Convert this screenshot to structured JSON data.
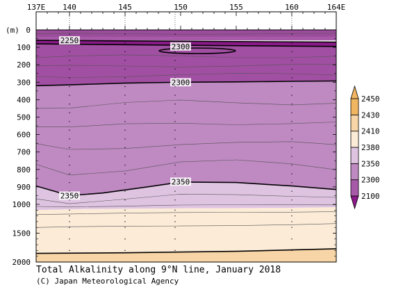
{
  "caption": {
    "title": "Total Alkalinity along 9°N line, January 2018",
    "credit": "(C) Japan Meteorological Agency"
  },
  "chart_data": {
    "type": "contour",
    "x_axis": {
      "unit_label": "",
      "ticks": [
        {
          "value": 137,
          "label": "137E"
        },
        {
          "value": 140,
          "label": "140"
        },
        {
          "value": 145,
          "label": "145"
        },
        {
          "value": 150,
          "label": "150"
        },
        {
          "value": 155,
          "label": "155"
        },
        {
          "value": 160,
          "label": "160"
        },
        {
          "value": 164,
          "label": "164E"
        }
      ],
      "range": [
        137,
        164
      ]
    },
    "y_axis": {
      "unit_label": "(m)",
      "ticks_upper": [
        0,
        100,
        200,
        300,
        400,
        500,
        600,
        700,
        800,
        900,
        1000
      ],
      "ticks_lower": [
        1500,
        2000
      ],
      "range": [
        0,
        2000
      ],
      "inverted": true
    },
    "stations_lon": [
      140,
      145,
      149.5,
      160
    ],
    "colorbar": {
      "levels": [
        "2100",
        "2300",
        "2350",
        "2380",
        "2410",
        "2430",
        "2450"
      ],
      "colors": [
        "#8b1a89",
        "#a65aa8",
        "#bf89c2",
        "#dfc4e2",
        "#fbebd7",
        "#f8d5a6",
        "#f1b662"
      ]
    },
    "contour_labels": [
      {
        "text": "2250",
        "lon": 140,
        "depth": 60
      },
      {
        "text": "2300",
        "lon": 150,
        "depth": 95
      },
      {
        "text": "2300",
        "lon": 150,
        "depth": 300
      },
      {
        "text": "2350",
        "lon": 150,
        "depth": 870
      },
      {
        "text": "2350",
        "lon": 140,
        "depth": 950
      }
    ],
    "bands": [
      {
        "value": 2300,
        "color": "#a65aa8",
        "upper": [
          [
            137,
            40
          ],
          [
            164,
            40
          ]
        ],
        "lower": [
          [
            137,
            60
          ],
          [
            164,
            60
          ]
        ]
      },
      {
        "value": 2250,
        "color": "#8b1a89",
        "upper": [
          [
            137,
            60
          ],
          [
            150,
            65
          ],
          [
            164,
            70
          ]
        ],
        "lower": [
          [
            137,
            80
          ],
          [
            150,
            88
          ],
          [
            164,
            95
          ]
        ]
      },
      {
        "value": 2300,
        "color": "#a14fa2",
        "upper": [
          [
            137,
            80
          ],
          [
            150,
            88
          ],
          [
            164,
            95
          ]
        ],
        "lower": [
          [
            137,
            320
          ],
          [
            140,
            315
          ],
          [
            145,
            305
          ],
          [
            150,
            300
          ],
          [
            155,
            298
          ],
          [
            160,
            295
          ],
          [
            164,
            293
          ]
        ]
      },
      {
        "value": 2350,
        "color": "#bf89c2",
        "upper": [
          [
            137,
            320
          ],
          [
            140,
            315
          ],
          [
            145,
            305
          ],
          [
            150,
            300
          ],
          [
            155,
            298
          ],
          [
            160,
            295
          ],
          [
            164,
            293
          ]
        ],
        "lower": [
          [
            137,
            895
          ],
          [
            140,
            950
          ],
          [
            143,
            935
          ],
          [
            147,
            900
          ],
          [
            150,
            872
          ],
          [
            155,
            875
          ],
          [
            160,
            895
          ],
          [
            164,
            915
          ]
        ]
      },
      {
        "value": 2380,
        "color": "#dfc4e2",
        "upper": [
          [
            137,
            895
          ],
          [
            140,
            950
          ],
          [
            143,
            935
          ],
          [
            147,
            900
          ],
          [
            150,
            872
          ],
          [
            155,
            875
          ],
          [
            160,
            895
          ],
          [
            164,
            915
          ]
        ],
        "lower": [
          [
            137,
            1100
          ],
          [
            142,
            1080
          ],
          [
            150,
            1070
          ],
          [
            160,
            1060
          ],
          [
            164,
            1050
          ]
        ]
      },
      {
        "value": 2410,
        "color": "#fbebd7",
        "upper": [
          [
            137,
            1100
          ],
          [
            142,
            1080
          ],
          [
            150,
            1070
          ],
          [
            160,
            1060
          ],
          [
            164,
            1050
          ]
        ],
        "lower": [
          [
            137,
            1850
          ],
          [
            145,
            1840
          ],
          [
            155,
            1815
          ],
          [
            160,
            1790
          ],
          [
            164,
            1770
          ]
        ]
      },
      {
        "value": 2430,
        "color": "#f8d5a6",
        "upper": [
          [
            137,
            1850
          ],
          [
            145,
            1840
          ],
          [
            155,
            1815
          ],
          [
            160,
            1790
          ],
          [
            164,
            1770
          ]
        ],
        "lower": [
          [
            137,
            2000
          ],
          [
            164,
            2000
          ]
        ]
      }
    ]
  }
}
